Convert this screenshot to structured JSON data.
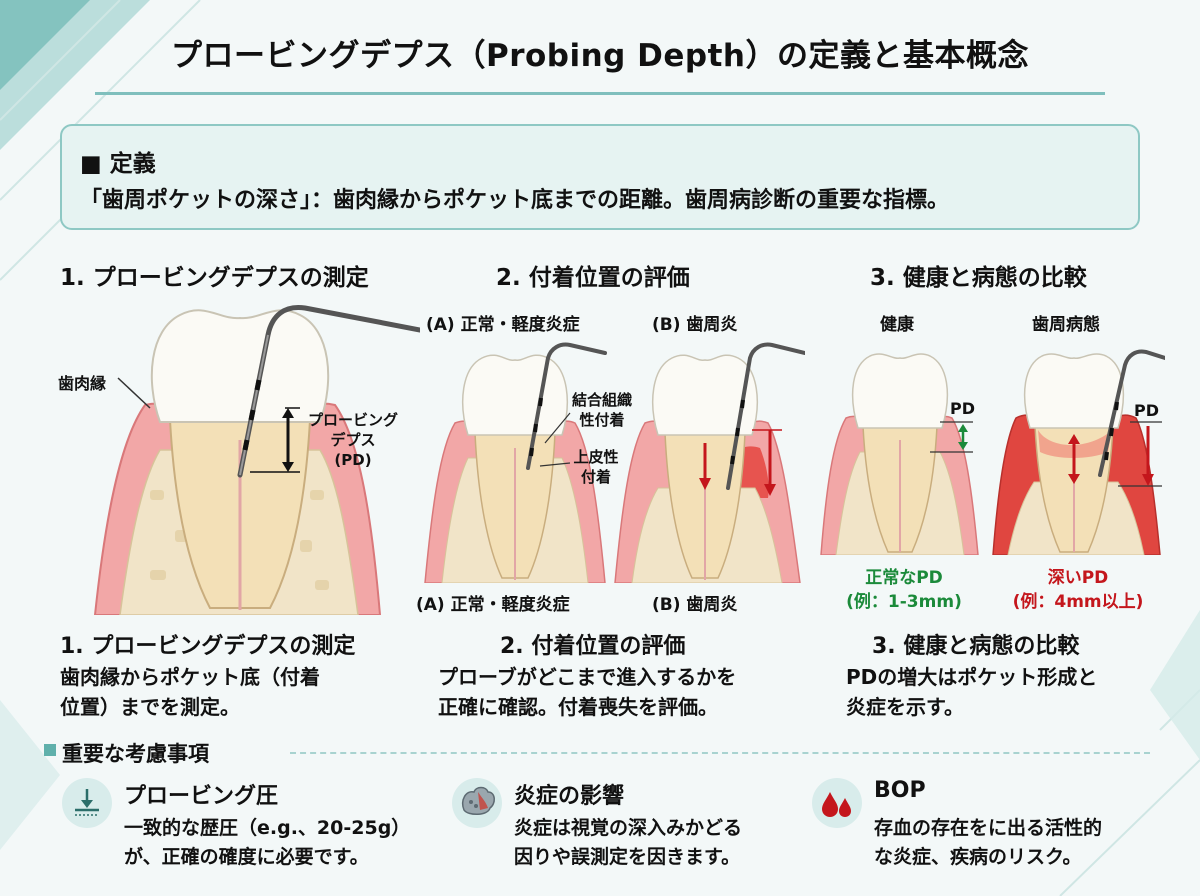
{
  "title": "プロービングデプス（Probing Depth）の定義と基本概念",
  "definition": {
    "heading": "■ 定義",
    "text": "「歯周ポケットの深さ」：歯肉縁からポケット底までの距離。歯周病診断の重要な指標。"
  },
  "section1": {
    "heading": "1. プロービングデプスの測定",
    "label_gingival_margin": "歯肉縁",
    "label_pd_line1": "プロービング",
    "label_pd_line2": "デプス",
    "label_pd_line3": "(PD)",
    "bottom_heading": "1. プロービングデプスの測定",
    "bottom_line1": "歯肉縁からポケット底（付着",
    "bottom_line2": "位置）までを測定。"
  },
  "section2": {
    "heading": "2. 付着位置の評価",
    "label_a": "(A) 正常・軽度炎症",
    "label_b": "(B) 歯周炎",
    "label_connective_line1": "結合組織",
    "label_connective_line2": "性付着",
    "label_epithelial_line1": "上皮性",
    "label_epithelial_line2": "付着",
    "caption_a": "(A) 正常・軽度炎症",
    "caption_b": "(B) 歯周炎",
    "bottom_heading": "2. 付着位置の評価",
    "bottom_line1": "プローブがどこまで進入するかを",
    "bottom_line2": "正確に確認。付着喪失を評価。"
  },
  "section3": {
    "heading": "3. 健康と病態の比較",
    "label_healthy": "健康",
    "label_disease": "歯周病態",
    "pd_label_healthy": "PD",
    "pd_label_disease": "PD",
    "caption_healthy_line1": "正常なPD",
    "caption_healthy_line2": "(例：1-3mm)",
    "caption_disease_line1": "深いPD",
    "caption_disease_line2": "(例：4mm以上)",
    "bottom_heading": "3. 健康と病態の比較",
    "bottom_line1": "PDの増大はポケット形成と",
    "bottom_line2": "炎症を示す。"
  },
  "considerations": {
    "heading": "重要な考慮事項",
    "items": [
      {
        "icon": "pressure-gauge-icon",
        "title": "プロービング圧",
        "line1": "一致的な歴圧（e.g.、20-25g）",
        "line2": "が、正確の確度に必要です。"
      },
      {
        "icon": "inflamed-tissue-icon",
        "title": "炎症の影響",
        "line1": "炎症は視覚の深入みかどる",
        "line2": "因りや誤測定を因きます。"
      },
      {
        "icon": "blood-drops-icon",
        "title": "BOP",
        "line1": "存血の存在をに出る活性的",
        "line2": "な炎症、疾病のリスク。"
      }
    ]
  },
  "colors": {
    "accent_teal": "#7fbfbd",
    "healthy_green": "#1b8a3a",
    "disease_red": "#c4161c",
    "gum_pink": "#f2a7a7",
    "bone": "#f1e4c8"
  }
}
